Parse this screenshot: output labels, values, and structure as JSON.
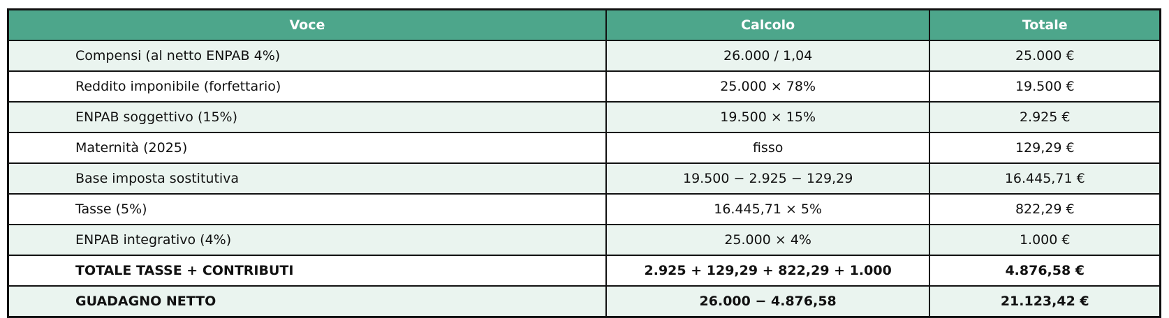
{
  "chart_data": {
    "type": "table",
    "columns": [
      "Voce",
      "Calcolo",
      "Totale"
    ],
    "rows": [
      [
        "Compensi (al netto ENPAB 4%)",
        "26.000 / 1,04",
        "25.000 €"
      ],
      [
        "Reddito imponibile (forfettario)",
        "25.000 × 78%",
        "19.500 €"
      ],
      [
        "ENPAB soggettivo (15%)",
        "19.500 × 15%",
        "2.925 €"
      ],
      [
        "Maternità (2025)",
        "fisso",
        "129,29 €"
      ],
      [
        "Base imposta sostitutiva",
        "19.500 − 2.925 − 129,29",
        "16.445,71 €"
      ],
      [
        "Tasse (5%)",
        "16.445,71 × 5%",
        "822,29 €"
      ],
      [
        "ENPAB integrativo (4%)",
        "25.000 × 4%",
        "1.000 €"
      ],
      [
        "TOTALE TASSE + CONTRIBUTI",
        "2.925 + 129,29 + 822,29 + 1.000",
        "4.876,58 €"
      ],
      [
        "GUADAGNO NETTO",
        "26.000 − 4.876,58",
        "21.123,42 €"
      ]
    ],
    "bold_row_indices": [
      7,
      8
    ],
    "shaded_row_indices": [
      0,
      2,
      4,
      6,
      8
    ],
    "layout_hints": {
      "header_bg": "#4da68b",
      "header_text_color": "#ffffff",
      "shaded_row_bg": "#eaf4ef",
      "plain_row_bg": "#ffffff",
      "border_color": "#111111",
      "text_color": "#111111"
    }
  }
}
